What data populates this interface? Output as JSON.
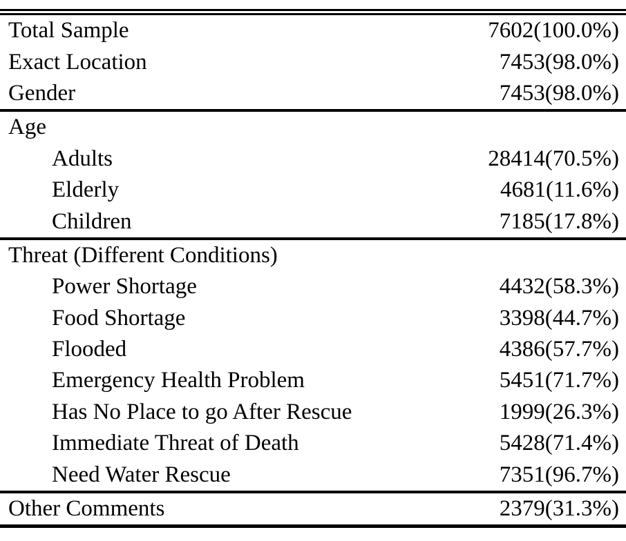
{
  "page": {
    "background_color": "#ffffff",
    "text_color": "#000000"
  },
  "table": {
    "value_format": "count(percent)",
    "groups": [
      {
        "rows": [
          {
            "label": "Total Sample",
            "value": "7602(100.0%)",
            "indent": false
          },
          {
            "label": "Exact Location",
            "value": "7453(98.0%)",
            "indent": false
          },
          {
            "label": "Gender",
            "value": "7453(98.0%)",
            "indent": false
          }
        ]
      },
      {
        "rows": [
          {
            "label": "Age",
            "value": "",
            "indent": false
          },
          {
            "label": "Adults",
            "value": "28414(70.5%)",
            "indent": true
          },
          {
            "label": "Elderly",
            "value": "4681(11.6%)",
            "indent": true
          },
          {
            "label": "Children",
            "value": "7185(17.8%)",
            "indent": true
          }
        ]
      },
      {
        "rows": [
          {
            "label": "Threat (Different Conditions)",
            "value": "",
            "indent": false
          },
          {
            "label": "Power Shortage",
            "value": "4432(58.3%)",
            "indent": true
          },
          {
            "label": "Food Shortage",
            "value": "3398(44.7%)",
            "indent": true
          },
          {
            "label": "Flooded",
            "value": "4386(57.7%)",
            "indent": true
          },
          {
            "label": "Emergency Health Problem",
            "value": "5451(71.7%)",
            "indent": true
          },
          {
            "label": "Has No Place to go After Rescue",
            "value": "1999(26.3%)",
            "indent": true
          },
          {
            "label": "Immediate Threat of Death",
            "value": "5428(71.4%)",
            "indent": true
          },
          {
            "label": "Need Water Rescue",
            "value": "7351(96.7%)",
            "indent": true
          }
        ]
      },
      {
        "rows": [
          {
            "label": "Other Comments",
            "value": "2379(31.3%)",
            "indent": false
          }
        ]
      }
    ]
  }
}
